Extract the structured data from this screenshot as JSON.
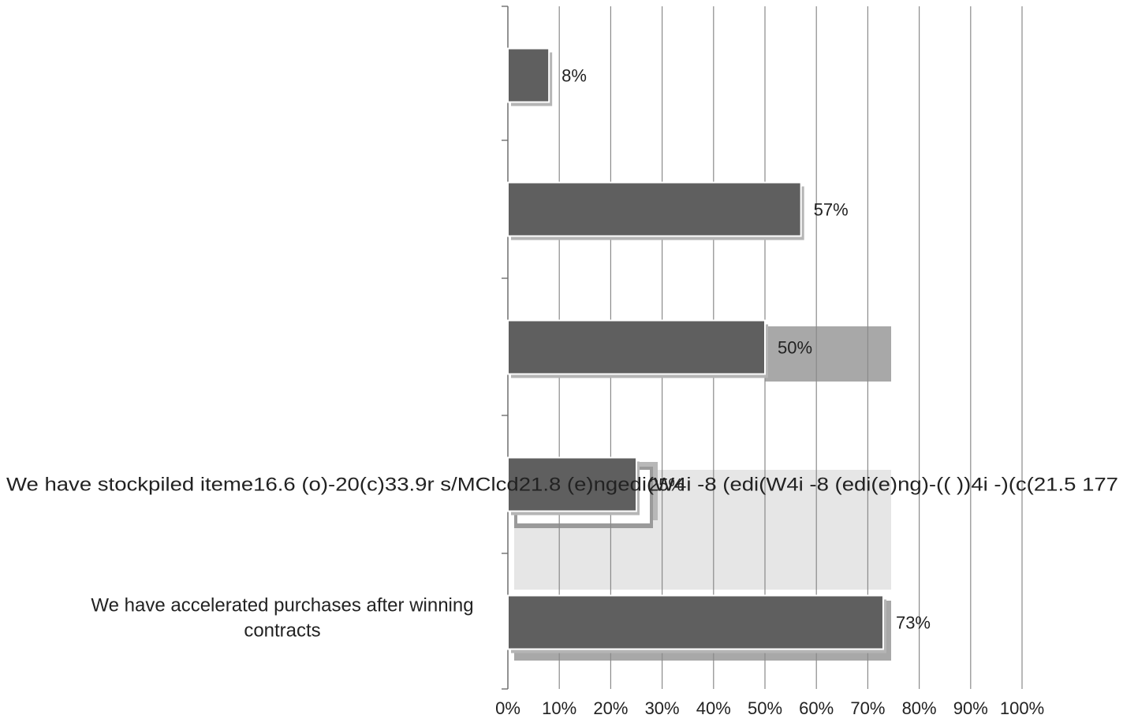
{
  "chart_data": {
    "type": "bar",
    "orientation": "horizontal",
    "title": "",
    "xlabel": "",
    "ylabel": "",
    "xlim": [
      0,
      100
    ],
    "x_ticks": [
      "0%",
      "10%",
      "20%",
      "30%",
      "40%",
      "50%",
      "60%",
      "70%",
      "80%",
      "90%",
      "100%"
    ],
    "grid": true,
    "legend": "none",
    "categories": [
      "",
      "",
      "",
      "We have stockpiled iteme16.6 (o)-20(c)33.9r s/MClcd21.8 (e)ngedi(W4i -8 (edi(W4i -8 (edi(e)ng)-(( ))4i -)(c(21.5 177",
      "We have accelerated purchases after winning contracts"
    ],
    "values": [
      8,
      57,
      50,
      25,
      73
    ],
    "value_labels": [
      "8%",
      "57%",
      "50%",
      "25%",
      "73%"
    ],
    "bar_color": "#5f5f5f"
  }
}
